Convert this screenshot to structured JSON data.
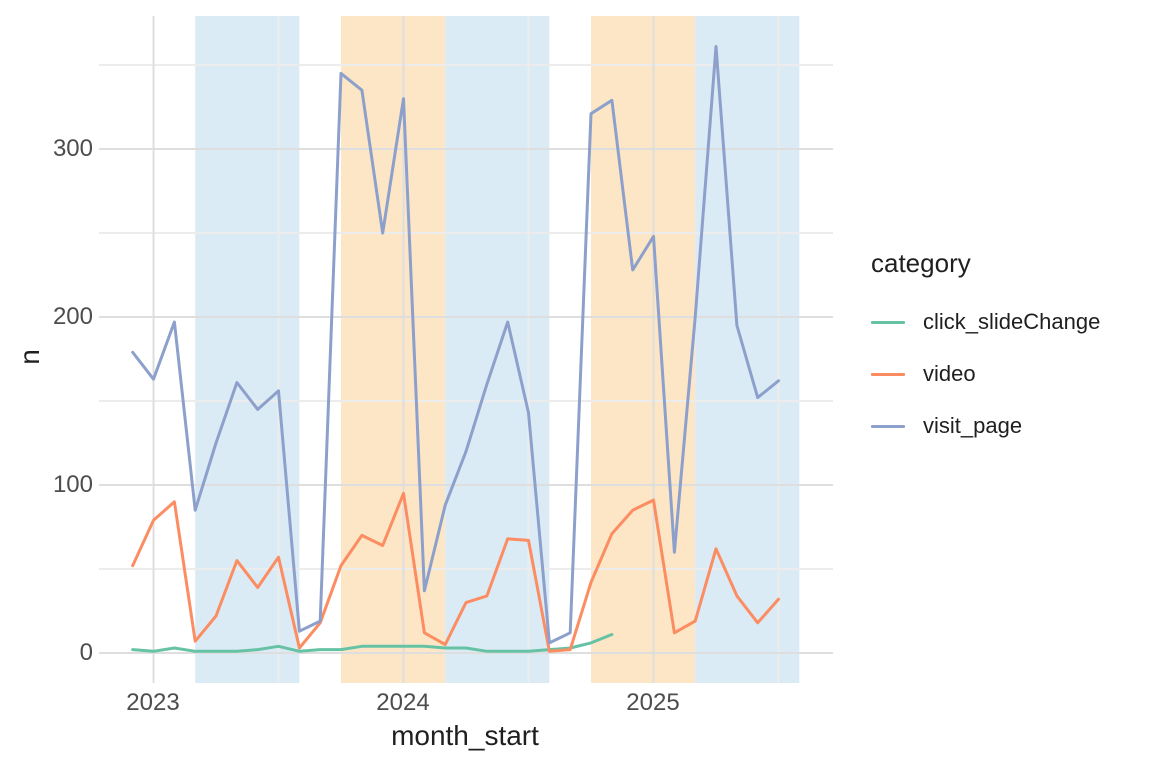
{
  "figure": {
    "y_axis": {
      "title": "n",
      "ticks": [
        "0",
        "100",
        "200",
        "300"
      ]
    },
    "x_axis": {
      "title": "month_start",
      "ticks": [
        "2023",
        "2024",
        "2025"
      ]
    },
    "legend": {
      "title": "category",
      "items": [
        {
          "label": "click_slideChange",
          "color": "#66C2A5"
        },
        {
          "label": "video",
          "color": "#FC8D62"
        },
        {
          "label": "visit_page",
          "color": "#8DA0CB"
        }
      ]
    }
  },
  "chart_data": {
    "type": "line",
    "title": "",
    "xlabel": "month_start",
    "ylabel": "n",
    "grid": "on",
    "legend_position": "right",
    "ylim": [
      -18,
      379
    ],
    "y_major_gridlines": [
      0,
      100,
      200,
      300
    ],
    "y_minor_gridlines": [
      50,
      150,
      250,
      350
    ],
    "x_major_gridlines": [
      "2023-01",
      "2024-01",
      "2025-01"
    ],
    "x_minor_gridlines": [
      "2023-07",
      "2024-07",
      "2025-07"
    ],
    "x": [
      "2022-12",
      "2023-01",
      "2023-02",
      "2023-03",
      "2023-04",
      "2023-05",
      "2023-06",
      "2023-07",
      "2023-08",
      "2023-09",
      "2023-10",
      "2023-11",
      "2023-12",
      "2024-01",
      "2024-02",
      "2024-03",
      "2024-04",
      "2024-05",
      "2024-06",
      "2024-07",
      "2024-08",
      "2024-09",
      "2024-10",
      "2024-11",
      "2024-12",
      "2025-01",
      "2025-02",
      "2025-03",
      "2025-04",
      "2025-05",
      "2025-06",
      "2025-07"
    ],
    "series": [
      {
        "name": "click_slideChange",
        "color": "#66C2A5",
        "values": [
          2,
          1,
          3,
          1,
          1,
          1,
          2,
          4,
          1,
          2,
          2,
          4,
          4,
          4,
          4,
          3,
          3,
          1,
          1,
          1,
          2,
          3,
          6,
          11,
          null,
          null,
          null,
          null,
          null,
          null,
          null,
          null
        ]
      },
      {
        "name": "video",
        "color": "#FC8D62",
        "values": [
          52,
          79,
          90,
          7,
          22,
          55,
          39,
          57,
          3,
          18,
          52,
          70,
          64,
          95,
          12,
          5,
          30,
          34,
          68,
          67,
          1,
          2,
          42,
          71,
          85,
          91,
          12,
          19,
          62,
          34,
          18,
          32
        ]
      },
      {
        "name": "visit_page",
        "color": "#8DA0CB",
        "values": [
          179,
          163,
          197,
          85,
          125,
          161,
          145,
          156,
          13,
          19,
          345,
          335,
          250,
          330,
          37,
          88,
          120,
          160,
          197,
          143,
          6,
          12,
          321,
          329,
          228,
          248,
          60,
          200,
          361,
          195,
          152,
          162
        ]
      }
    ],
    "bands": [
      {
        "from": "2023-03",
        "to": "2023-08",
        "color": "blue"
      },
      {
        "from": "2023-10",
        "to": "2024-03",
        "color": "orange"
      },
      {
        "from": "2024-03",
        "to": "2024-08",
        "color": "blue"
      },
      {
        "from": "2024-10",
        "to": "2025-03",
        "color": "orange"
      },
      {
        "from": "2025-03",
        "to": "2025-08",
        "color": "blue"
      }
    ],
    "band_colors": {
      "blue": "#DBEBF5",
      "orange": "#FCE6C6"
    }
  }
}
